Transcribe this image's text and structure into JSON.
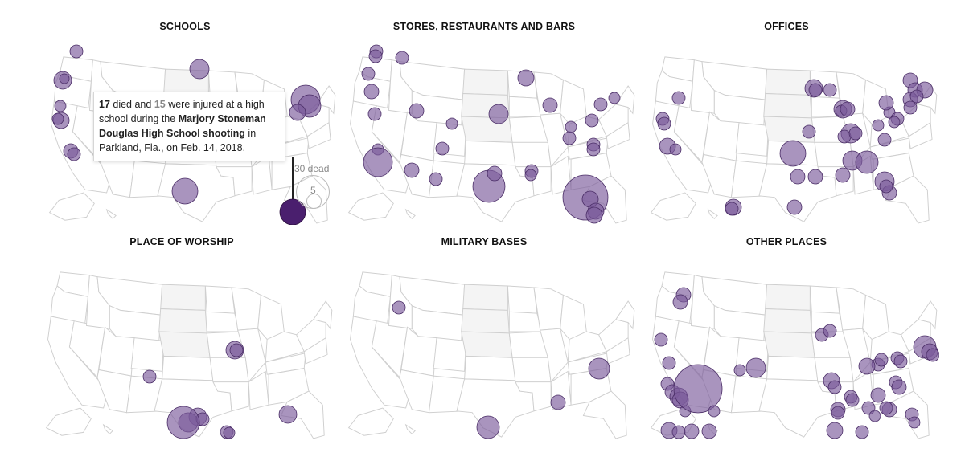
{
  "panels": [
    {
      "title": "SCHOOLS"
    },
    {
      "title": "STORES, RESTAURANTS AND BARS"
    },
    {
      "title": "OFFICES"
    },
    {
      "title": "PLACE OF WORSHIP"
    },
    {
      "title": "MILITARY BASES"
    },
    {
      "title": "OTHER PLACES"
    }
  ],
  "tooltip": {
    "died": "17",
    "text1": " died and ",
    "injured": "15",
    "text2": " were injured at a high school during the ",
    "event": "Marjory Stoneman Douglas High School shooting",
    "text3": " in Parkland, Fla., on Feb. 14, 2018."
  },
  "legend": {
    "large_label": "30 dead",
    "small_label": "5"
  },
  "colors": {
    "bubble": "#7b5a9b",
    "bubble_stroke": "#4a2d66",
    "highlight": "#4a1f6e"
  }
}
